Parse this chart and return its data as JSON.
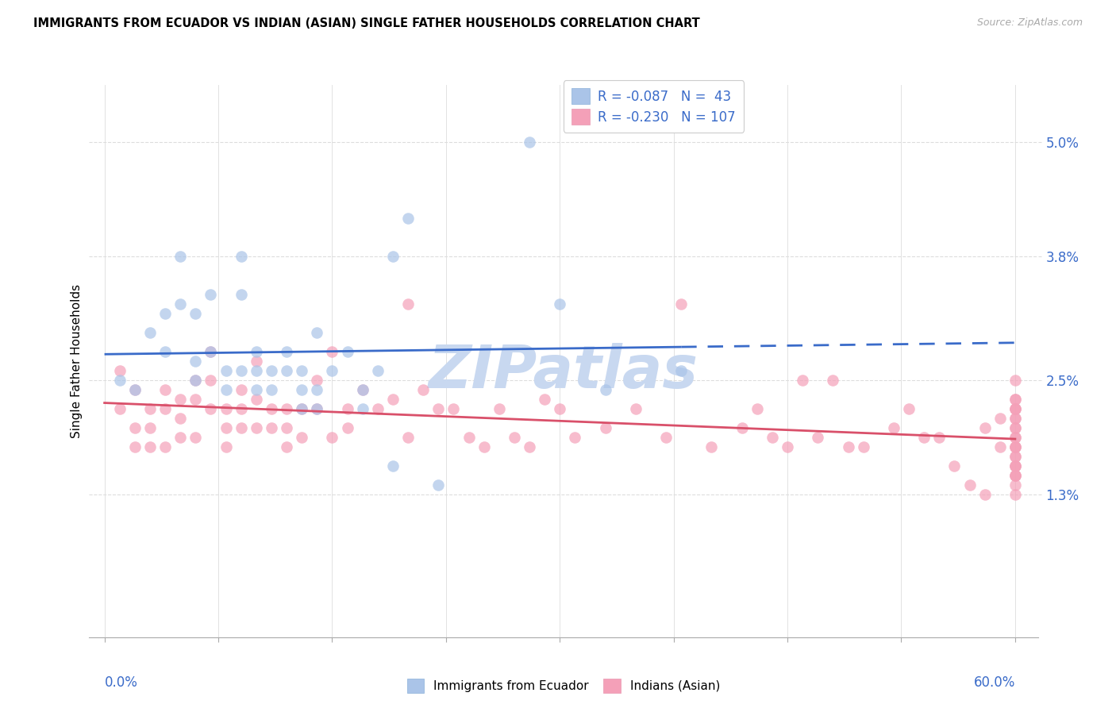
{
  "title": "IMMIGRANTS FROM ECUADOR VS INDIAN (ASIAN) SINGLE FATHER HOUSEHOLDS CORRELATION CHART",
  "source": "Source: ZipAtlas.com",
  "ylabel": "Single Father Households",
  "ytick_vals": [
    0.013,
    0.025,
    0.038,
    0.05
  ],
  "ytick_labels": [
    "1.3%",
    "2.5%",
    "3.8%",
    "5.0%"
  ],
  "xlim": [
    0.0,
    0.6
  ],
  "ylim": [
    0.0,
    0.055
  ],
  "legend1_label": "R = -0.087   N =  43",
  "legend2_label": "R = -0.230   N = 107",
  "blue_scatter_color": "#aac4e8",
  "pink_scatter_color": "#f4a0b8",
  "blue_edge_color": "#aac4e8",
  "pink_edge_color": "#f4a0b8",
  "line_blue_color": "#3a6bc9",
  "line_pink_color": "#d9506a",
  "legend_text_color": "#3a6bc9",
  "right_axis_color": "#3a6bc9",
  "watermark_text": "ZIPatlas",
  "watermark_color": "#c8d8f0",
  "bottom_label1": "Immigrants from Ecuador",
  "bottom_label2": "Indians (Asian)",
  "blue_x": [
    0.01,
    0.02,
    0.03,
    0.04,
    0.04,
    0.05,
    0.05,
    0.06,
    0.06,
    0.06,
    0.07,
    0.07,
    0.08,
    0.08,
    0.09,
    0.09,
    0.09,
    0.1,
    0.1,
    0.1,
    0.11,
    0.11,
    0.12,
    0.12,
    0.13,
    0.13,
    0.13,
    0.14,
    0.14,
    0.14,
    0.15,
    0.16,
    0.17,
    0.17,
    0.18,
    0.19,
    0.19,
    0.2,
    0.22,
    0.28,
    0.3,
    0.33,
    0.38
  ],
  "blue_y": [
    0.025,
    0.024,
    0.03,
    0.032,
    0.028,
    0.038,
    0.033,
    0.032,
    0.027,
    0.025,
    0.034,
    0.028,
    0.026,
    0.024,
    0.038,
    0.034,
    0.026,
    0.028,
    0.026,
    0.024,
    0.026,
    0.024,
    0.028,
    0.026,
    0.026,
    0.024,
    0.022,
    0.03,
    0.024,
    0.022,
    0.026,
    0.028,
    0.024,
    0.022,
    0.026,
    0.038,
    0.016,
    0.042,
    0.014,
    0.05,
    0.033,
    0.024,
    0.026
  ],
  "pink_x": [
    0.01,
    0.01,
    0.02,
    0.02,
    0.02,
    0.03,
    0.03,
    0.03,
    0.04,
    0.04,
    0.04,
    0.05,
    0.05,
    0.05,
    0.06,
    0.06,
    0.06,
    0.07,
    0.07,
    0.07,
    0.08,
    0.08,
    0.08,
    0.09,
    0.09,
    0.09,
    0.1,
    0.1,
    0.1,
    0.11,
    0.11,
    0.12,
    0.12,
    0.12,
    0.13,
    0.13,
    0.14,
    0.14,
    0.15,
    0.15,
    0.16,
    0.16,
    0.17,
    0.18,
    0.19,
    0.2,
    0.2,
    0.21,
    0.22,
    0.23,
    0.24,
    0.25,
    0.26,
    0.27,
    0.28,
    0.29,
    0.3,
    0.31,
    0.33,
    0.35,
    0.37,
    0.38,
    0.4,
    0.42,
    0.43,
    0.44,
    0.45,
    0.46,
    0.47,
    0.48,
    0.49,
    0.5,
    0.52,
    0.53,
    0.54,
    0.55,
    0.56,
    0.57,
    0.58,
    0.58,
    0.59,
    0.59,
    0.6,
    0.6,
    0.6,
    0.6,
    0.6,
    0.6,
    0.6,
    0.6,
    0.6,
    0.6,
    0.6,
    0.6,
    0.6,
    0.6,
    0.6,
    0.6,
    0.6,
    0.6,
    0.6,
    0.6,
    0.6,
    0.6,
    0.6,
    0.6,
    0.6
  ],
  "pink_y": [
    0.026,
    0.022,
    0.024,
    0.02,
    0.018,
    0.022,
    0.02,
    0.018,
    0.024,
    0.022,
    0.018,
    0.023,
    0.021,
    0.019,
    0.025,
    0.023,
    0.019,
    0.028,
    0.025,
    0.022,
    0.022,
    0.02,
    0.018,
    0.024,
    0.022,
    0.02,
    0.027,
    0.023,
    0.02,
    0.022,
    0.02,
    0.022,
    0.02,
    0.018,
    0.022,
    0.019,
    0.025,
    0.022,
    0.028,
    0.019,
    0.022,
    0.02,
    0.024,
    0.022,
    0.023,
    0.033,
    0.019,
    0.024,
    0.022,
    0.022,
    0.019,
    0.018,
    0.022,
    0.019,
    0.018,
    0.023,
    0.022,
    0.019,
    0.02,
    0.022,
    0.019,
    0.033,
    0.018,
    0.02,
    0.022,
    0.019,
    0.018,
    0.025,
    0.019,
    0.025,
    0.018,
    0.018,
    0.02,
    0.022,
    0.019,
    0.019,
    0.016,
    0.014,
    0.013,
    0.02,
    0.021,
    0.018,
    0.023,
    0.021,
    0.018,
    0.016,
    0.023,
    0.021,
    0.019,
    0.017,
    0.015,
    0.025,
    0.022,
    0.019,
    0.017,
    0.015,
    0.013,
    0.022,
    0.02,
    0.018,
    0.016,
    0.014,
    0.022,
    0.02,
    0.018,
    0.016,
    0.015
  ],
  "blue_trendline_x_end_solid": 0.38,
  "blue_trendline_x_end_dash": 0.6,
  "pink_trendline_x_start": 0.0,
  "pink_trendline_x_end": 0.6,
  "grid_color": "#dddddd",
  "spine_color": "#aaaaaa",
  "scatter_size": 110,
  "scatter_alpha": 0.7
}
